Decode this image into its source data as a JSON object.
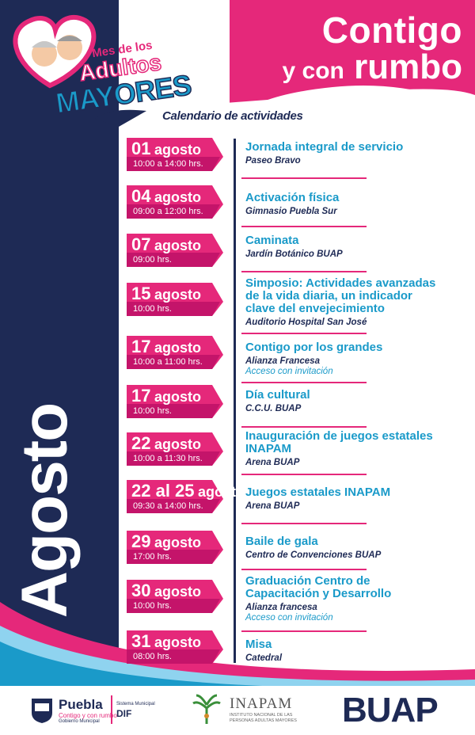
{
  "header": {
    "title_line1": "Contigo",
    "title_line2_small": "y con",
    "title_line2_big": "rumbo",
    "logo_line1": "Mes de los",
    "logo_line2": "Adultos",
    "logo_line3": "MAYORES",
    "calendar_title": "Calendario de actividades"
  },
  "month": "Agosto",
  "events": [
    {
      "day": "01",
      "month": "agosto",
      "time": "10:00 a 14:00 hrs.",
      "title": "Jornada integral de servicio",
      "place": "Paseo Bravo",
      "extra": ""
    },
    {
      "day": "04",
      "month": "agosto",
      "time": "09:00 a 12:00 hrs.",
      "title": "Activación física",
      "place": "Gimnasio Puebla Sur",
      "extra": ""
    },
    {
      "day": "07",
      "month": "agosto",
      "time": "09:00 hrs.",
      "title": "Caminata",
      "place": "Jardín Botánico BUAP",
      "extra": ""
    },
    {
      "day": "15",
      "month": "agosto",
      "time": "10:00 hrs.",
      "title": "Simposio: Actividades avanzadas de la vida diaria, un indicador clave del envejecimiento",
      "place": "Auditorio Hospital San José",
      "extra": ""
    },
    {
      "day": "17",
      "month": "agosto",
      "time": "10:00 a 11:00 hrs.",
      "title": "Contigo por los grandes",
      "place": "Alianza Francesa",
      "extra": "Acceso con invitación"
    },
    {
      "day": "17",
      "month": "agosto",
      "time": "10:00 hrs.",
      "title": "Día cultural",
      "place": "C.C.U. BUAP",
      "extra": ""
    },
    {
      "day": "22",
      "month": "agosto",
      "time": "10:00 a 11:30 hrs.",
      "title": "Inauguración de juegos estatales INAPAM",
      "place": "Arena BUAP",
      "extra": ""
    },
    {
      "day": "22 al 25",
      "month": "agosto",
      "time": "09:30 a 14:00 hrs.",
      "title": "Juegos estatales INAPAM",
      "place": "Arena BUAP",
      "extra": ""
    },
    {
      "day": "29",
      "month": "agosto",
      "time": "17:00 hrs.",
      "title": "Baile de gala",
      "place": "Centro de Convenciones BUAP",
      "extra": ""
    },
    {
      "day": "30",
      "month": "agosto",
      "time": "10:00 hrs.",
      "title": "Graduación Centro de Capacitación y Desarrollo",
      "place": "Alianza francesa",
      "extra": "Acceso con invitación"
    },
    {
      "day": "31",
      "month": "agosto",
      "time": "08:00 hrs.",
      "title": "Misa",
      "place": "Catedral",
      "extra": ""
    }
  ],
  "footer": {
    "puebla_name": "Puebla",
    "puebla_slogan": "Contigo y con rumbo",
    "puebla_sub": "Gobierno Municipal",
    "dif_sub": "Sistema Municipal",
    "dif_name": "DIF",
    "inapam_name": "INAPAM",
    "inapam_sub1": "INSTITUTO NACIONAL DE LAS",
    "inapam_sub2": "PERSONAS ADULTAS MAYORES",
    "buap_name": "BUAP"
  },
  "colors": {
    "pink": "#e5287a",
    "navy": "#1e2a55",
    "cyan": "#1a9ac9"
  }
}
